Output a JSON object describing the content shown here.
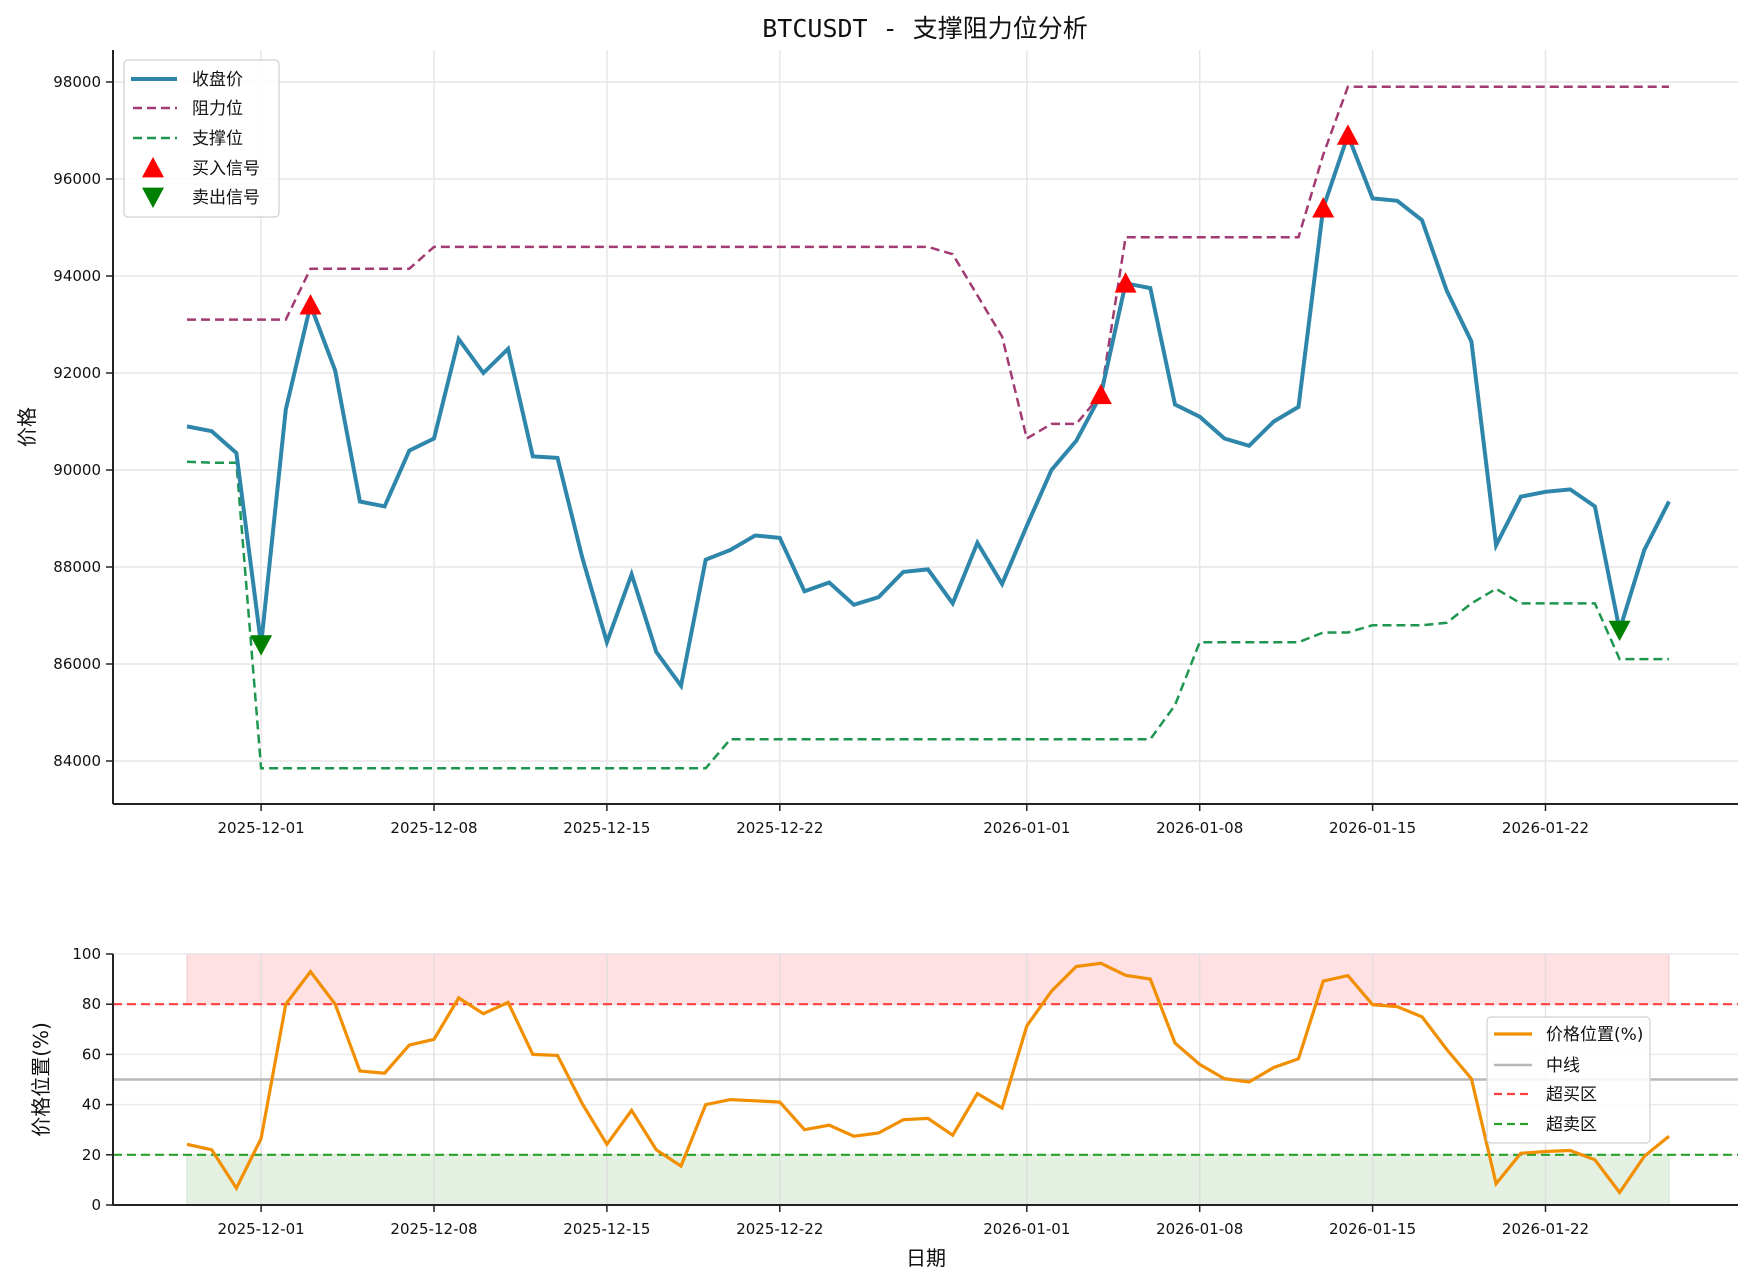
{
  "title": "BTCUSDT - 支撑阻力位分析",
  "colors": {
    "close": "#2e86ab",
    "resistance": "#a23b72",
    "support": "#1e9650",
    "buy": "#ff0000",
    "sell": "#008000",
    "position": "#f18f01",
    "midline": "#b8b8b8",
    "overbought": "#ff4040",
    "oversold": "#2ca02c",
    "overbought_fill": "#ffe1e4",
    "oversold_fill": "#e3f0e2",
    "grid": "#e6e6e6"
  },
  "chart_data": [
    {
      "type": "line",
      "title": "BTCUSDT - 支撑阻力位分析",
      "xlabel": "",
      "ylabel": "价格",
      "ylim": [
        83200,
        98600
      ],
      "yticks": [
        84000,
        86000,
        88000,
        90000,
        92000,
        94000,
        96000,
        98000
      ],
      "xticks": [
        "2025-12-01",
        "2025-12-08",
        "2025-12-15",
        "2025-12-22",
        "2026-01-01",
        "2026-01-08",
        "2026-01-15",
        "2026-01-22"
      ],
      "grid": true,
      "legend_position": "upper left",
      "x": [
        "2025-11-28",
        "2025-11-29",
        "2025-11-30",
        "2025-12-01",
        "2025-12-02",
        "2025-12-03",
        "2025-12-04",
        "2025-12-05",
        "2025-12-06",
        "2025-12-07",
        "2025-12-08",
        "2025-12-09",
        "2025-12-10",
        "2025-12-11",
        "2025-12-12",
        "2025-12-13",
        "2025-12-14",
        "2025-12-15",
        "2025-12-16",
        "2025-12-17",
        "2025-12-18",
        "2025-12-19",
        "2025-12-20",
        "2025-12-21",
        "2025-12-22",
        "2025-12-23",
        "2025-12-24",
        "2025-12-25",
        "2025-12-26",
        "2025-12-27",
        "2025-12-28",
        "2025-12-29",
        "2025-12-30",
        "2025-12-31",
        "2026-01-01",
        "2026-01-02",
        "2026-01-03",
        "2026-01-04",
        "2026-01-05",
        "2026-01-06",
        "2026-01-07",
        "2026-01-08",
        "2026-01-09",
        "2026-01-10",
        "2026-01-11",
        "2026-01-12",
        "2026-01-13",
        "2026-01-14",
        "2026-01-15",
        "2026-01-16",
        "2026-01-17",
        "2026-01-18",
        "2026-01-19",
        "2026-01-20",
        "2026-01-21",
        "2026-01-22",
        "2026-01-23",
        "2026-01-24",
        "2026-01-25",
        "2026-01-26",
        "2026-01-27"
      ],
      "series": [
        {
          "name": "收盘价",
          "style": "solid",
          "values": [
            90900,
            90800,
            90350,
            86400,
            91250,
            93400,
            92050,
            89350,
            89250,
            90400,
            90650,
            92700,
            92000,
            92500,
            90280,
            90250,
            88200,
            86450,
            87850,
            86250,
            85550,
            88150,
            88350,
            88650,
            88600,
            87500,
            87680,
            87220,
            87380,
            87900,
            87950,
            87250,
            88500,
            87650,
            88850,
            90000,
            90600,
            91550,
            93850,
            93750,
            91350,
            91100,
            90650,
            90500,
            91000,
            91300,
            95400,
            96900,
            95600,
            95550,
            95150,
            93700,
            92650,
            88450,
            89450,
            89550,
            89600,
            89250,
            86700,
            88350,
            89350
          ]
        },
        {
          "name": "阻力位",
          "style": "dashed",
          "values": [
            93100,
            93100,
            93100,
            93100,
            93100,
            94150,
            94150,
            94150,
            94150,
            94150,
            94600,
            94600,
            94600,
            94600,
            94600,
            94600,
            94600,
            94600,
            94600,
            94600,
            94600,
            94600,
            94600,
            94600,
            94600,
            94600,
            94600,
            94600,
            94600,
            94600,
            94600,
            94450,
            93600,
            92750,
            90650,
            90950,
            90950,
            91550,
            94800,
            94800,
            94800,
            94800,
            94800,
            94800,
            94800,
            94800,
            96500,
            97900,
            97900,
            97900,
            97900,
            97900,
            97900,
            97900,
            97900,
            97900,
            97900,
            97900,
            97900,
            97900,
            97900
          ]
        },
        {
          "name": "支撑位",
          "style": "dashed",
          "values": [
            90170,
            90150,
            90150,
            83850,
            83850,
            83850,
            83850,
            83850,
            83850,
            83850,
            83850,
            83850,
            83850,
            83850,
            83850,
            83850,
            83850,
            83850,
            83850,
            83850,
            83850,
            83850,
            84450,
            84450,
            84450,
            84450,
            84450,
            84450,
            84450,
            84450,
            84450,
            84450,
            84450,
            84450,
            84450,
            84450,
            84450,
            84450,
            84450,
            84450,
            85150,
            86450,
            86450,
            86450,
            86450,
            86450,
            86650,
            86650,
            86800,
            86800,
            86800,
            86850,
            87250,
            87550,
            87250,
            87250,
            87250,
            87250,
            86100,
            86100,
            86100
          ]
        }
      ],
      "markers": [
        {
          "name": "买入信号",
          "shape": "triangle-up",
          "points": [
            [
              "2025-12-03",
              93400
            ],
            [
              "2026-01-04",
              91550
            ],
            [
              "2026-01-05",
              93850
            ],
            [
              "2026-01-13",
              95400
            ],
            [
              "2026-01-14",
              96900
            ]
          ]
        },
        {
          "name": "卖出信号",
          "shape": "triangle-down",
          "points": [
            [
              "2025-12-01",
              86400
            ],
            [
              "2026-01-25",
              86700
            ]
          ]
        }
      ]
    },
    {
      "type": "line",
      "title": "",
      "xlabel": "日期",
      "ylabel": "价格位置(%)",
      "ylim": [
        0,
        100
      ],
      "yticks": [
        0,
        20,
        40,
        60,
        80,
        100
      ],
      "xticks": [
        "2025-12-01",
        "2025-12-08",
        "2025-12-15",
        "2025-12-22",
        "2026-01-01",
        "2026-01-08",
        "2026-01-15",
        "2026-01-22"
      ],
      "grid": true,
      "legend_position": "center right",
      "series": [
        {
          "name": "价格位置(%)",
          "style": "solid",
          "values": [
            24.2,
            22,
            6.7,
            26.5,
            80,
            93,
            80,
            53.4,
            52.5,
            63.7,
            66,
            82.5,
            76.2,
            80.7,
            60,
            59.6,
            40.4,
            24.2,
            37.7,
            22,
            15.5,
            40,
            42,
            41.5,
            41,
            30,
            31.8,
            27.4,
            28.7,
            34,
            34.5,
            27.8,
            44.4,
            38.6,
            71.3,
            85.2,
            95,
            96.3,
            91.5,
            90,
            64.5,
            56,
            50.3,
            49,
            54.8,
            58.3,
            89.2,
            91.4,
            79.8,
            79,
            75,
            62,
            50.3,
            8.5,
            20.6,
            21.3,
            21.7,
            18,
            5,
            19.4,
            27.4
          ]
        },
        {
          "name": "中线",
          "style": "solid",
          "value": 50
        },
        {
          "name": "超买区",
          "style": "dashed",
          "value": 80
        },
        {
          "name": "超卖区",
          "style": "dashed",
          "value": 20
        }
      ],
      "bands": [
        {
          "from": 80,
          "to": 100,
          "color": "overbought_fill"
        },
        {
          "from": 0,
          "to": 20,
          "color": "oversold_fill"
        }
      ]
    }
  ]
}
